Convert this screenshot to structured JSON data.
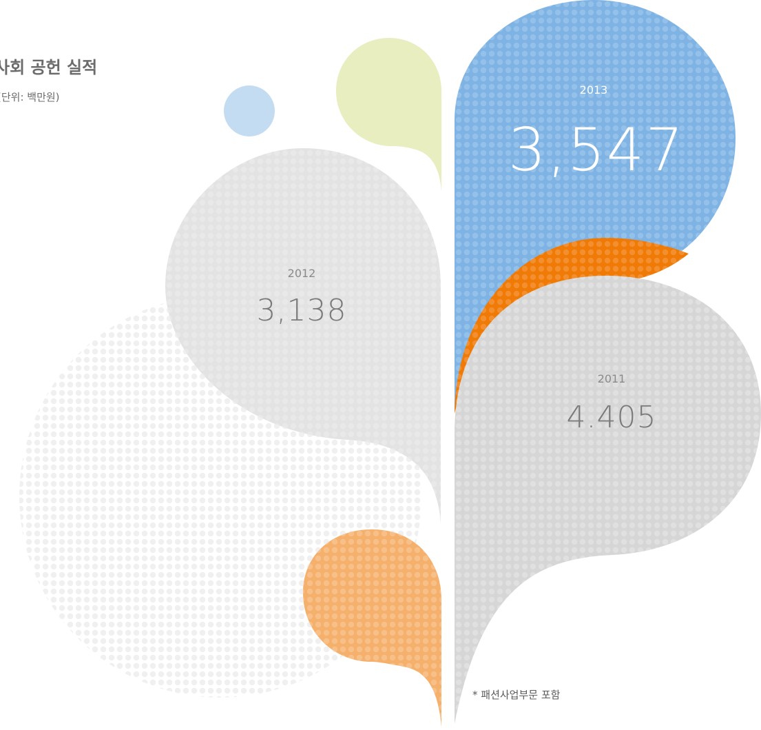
{
  "title": "사회 공헌 실적",
  "unit_label": "(단위: 백만원)",
  "footnote": "* 패션사업부문 포함",
  "colors": {
    "y2013": "#80b6e6",
    "y2012": "#e2e2e2",
    "y2011": "#d8d8d8",
    "accent_orange": "#f07d0a",
    "light_orange": "#f6b67a",
    "light_blue": "#c4dcf2",
    "light_green": "#e8eec0",
    "faint": "#f1f1f1"
  },
  "chart_data": {
    "type": "bubble",
    "title": "사회 공헌 실적",
    "unit": "(단위: 백만원)",
    "categories": [
      "2013",
      "2012",
      "2011"
    ],
    "values": [
      3547,
      3138,
      4405
    ],
    "labels": {
      "2013": {
        "year": "2013",
        "value": "3,547"
      },
      "2012": {
        "year": "2012",
        "value": "3,138"
      },
      "2011": {
        "year": "2011",
        "value": "4.405"
      }
    },
    "legend": "none",
    "grid": false
  }
}
